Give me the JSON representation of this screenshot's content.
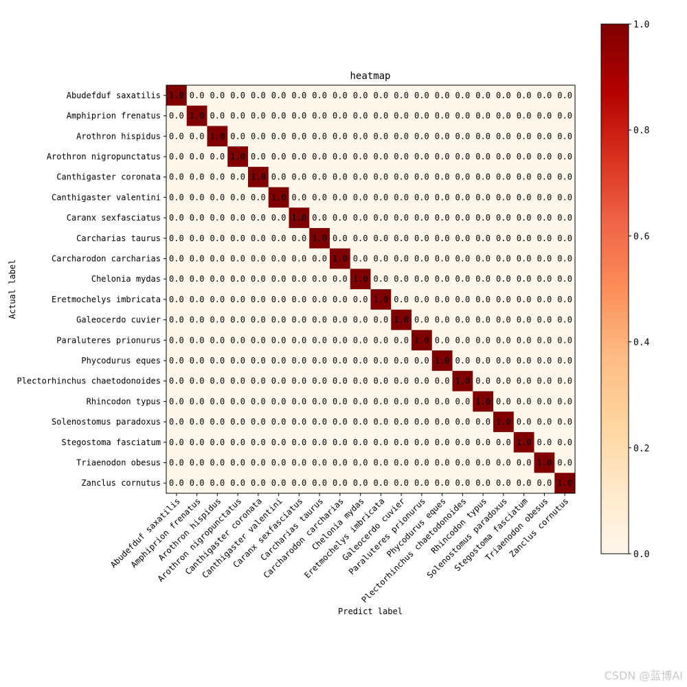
{
  "chart_data": {
    "type": "heatmap",
    "title": "heatmap",
    "xlabel": "Predict label",
    "ylabel": "Actual label",
    "labels": [
      "Abudefduf saxatilis",
      "Amphiprion frenatus",
      "Arothron hispidus",
      "Arothron nigropunctatus",
      "Canthigaster coronata",
      "Canthigaster valentini",
      "Caranx sexfasciatus",
      "Carcharias taurus",
      "Carcharodon carcharias",
      "Chelonia mydas",
      "Eretmochelys imbricata",
      "Galeocerdo cuvier",
      "Paraluteres prionurus",
      "Phycodurus eques",
      "Plectorhinchus chaetodonoides",
      "Rhincodon typus",
      "Solenostomus paradoxus",
      "Stegostoma fasciatum",
      "Triaenodon obesus",
      "Zanclus cornutus"
    ],
    "value_format": "0.0",
    "matrix_rule": "identity",
    "matrix_size": 20,
    "diagonal_value": 1.0,
    "off_diagonal_value": 0.0,
    "colormap": "OrRd",
    "color_low": "#fff7ec",
    "color_high": "#7f0000",
    "colorbar_range": [
      0.0,
      1.0
    ],
    "colorbar_ticks": [
      "0.0",
      "0.2",
      "0.4",
      "0.6",
      "0.8",
      "1.0"
    ]
  },
  "watermark": "CSDN @蓝博AI"
}
